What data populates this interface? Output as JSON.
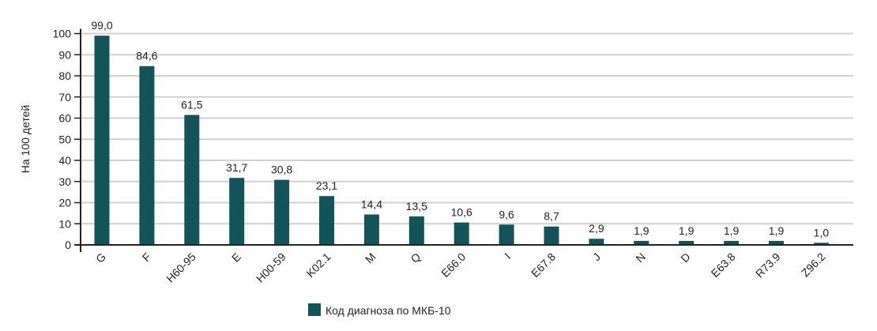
{
  "chart_data": {
    "type": "bar",
    "title": "",
    "xlabel": "",
    "ylabel": "На 100 детей",
    "ylim": [
      0,
      100
    ],
    "yticks": [
      0,
      10,
      20,
      30,
      40,
      50,
      60,
      70,
      80,
      90,
      100
    ],
    "grid": true,
    "legend": {
      "placement": "bottom-center",
      "entries": [
        "Код диагноза по МКБ-10"
      ]
    },
    "categories": [
      "G",
      "F",
      "H60-95",
      "E",
      "H00-59",
      "K02.1",
      "M",
      "Q",
      "E66.0",
      "I",
      "E67.8",
      "J",
      "N",
      "D",
      "E63.8",
      "R73.9",
      "Z96.2"
    ],
    "values": [
      99.0,
      84.6,
      61.5,
      31.7,
      30.8,
      23.1,
      14.4,
      13.5,
      10.6,
      9.6,
      8.7,
      2.9,
      1.9,
      1.9,
      1.9,
      1.9,
      1.0
    ],
    "value_labels": [
      "99,0",
      "84,6",
      "61,5",
      "31,7",
      "30,8",
      "23,1",
      "14,4",
      "13,5",
      "10,6",
      "9,6",
      "8,7",
      "2,9",
      "1,9",
      "1,9",
      "1,9",
      "1,9",
      "1,0"
    ],
    "colors": {
      "bar": "#12545a",
      "grid": "#d0d0d0",
      "axis": "#222222"
    }
  }
}
